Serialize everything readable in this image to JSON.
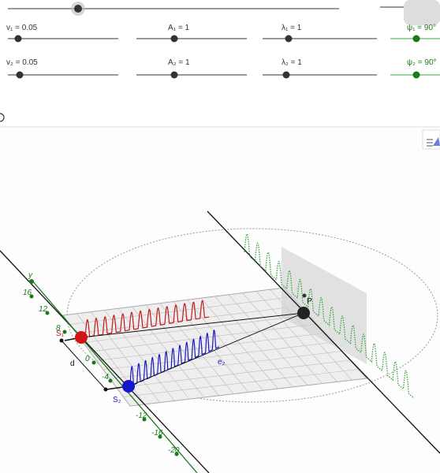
{
  "sliders": [
    {
      "label": "v₁ = 0.05",
      "color": "#333333"
    },
    {
      "label": "A₁ = 1",
      "color": "#333333"
    },
    {
      "label": "λ₁ = 1",
      "color": "#333333"
    },
    {
      "label": "ψ₁ = 90°",
      "color": "#1a7a1a"
    },
    {
      "label": "v₂ = 0.05",
      "color": "#333333"
    },
    {
      "label": "A₂ = 1",
      "color": "#333333"
    },
    {
      "label": "λ₂ = 1",
      "color": "#333333"
    },
    {
      "label": "ψ₂ = 90°",
      "color": "#1a7a1a"
    }
  ],
  "view3d": {
    "axis_name": "y",
    "axis_ticks": [
      "16",
      "12",
      "8",
      "0",
      "-4",
      "-12",
      "-16",
      "-20"
    ],
    "source1": "S₁",
    "source2": "S₂",
    "distance": "d",
    "point": "P",
    "vector": "e₂"
  }
}
